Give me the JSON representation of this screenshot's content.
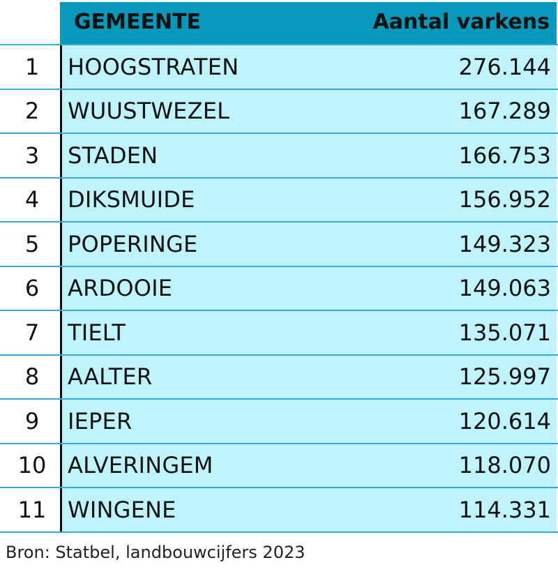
{
  "chart_data": {
    "type": "table",
    "columns": [
      "",
      "GEMEENTE",
      "Aantal varkens"
    ],
    "rows": [
      {
        "rank": "1",
        "name": "HOOGSTRATEN",
        "value": "276.144"
      },
      {
        "rank": "2",
        "name": "WUUSTWEZEL",
        "value": "167.289"
      },
      {
        "rank": "3",
        "name": "STADEN",
        "value": "166.753"
      },
      {
        "rank": "4",
        "name": "DIKSMUIDE",
        "value": "156.952"
      },
      {
        "rank": "5",
        "name": "POPERINGE",
        "value": "149.323"
      },
      {
        "rank": "6",
        "name": "ARDOOIE",
        "value": "149.063"
      },
      {
        "rank": "7",
        "name": "TIELT",
        "value": "135.071"
      },
      {
        "rank": "8",
        "name": "AALTER",
        "value": "125.997"
      },
      {
        "rank": "9",
        "name": "IEPER",
        "value": "120.614"
      },
      {
        "rank": "10",
        "name": "ALVERINGEM",
        "value": "118.070"
      },
      {
        "rank": "11",
        "name": "WINGENE",
        "value": "114.331"
      }
    ],
    "source": "Bron: Statbel, landbouwcijfers 2023"
  },
  "colors": {
    "header_bg": "#0699bb",
    "row_bg": "#bff4fc",
    "row_border": "#3aa7d8",
    "text": "#111111"
  }
}
